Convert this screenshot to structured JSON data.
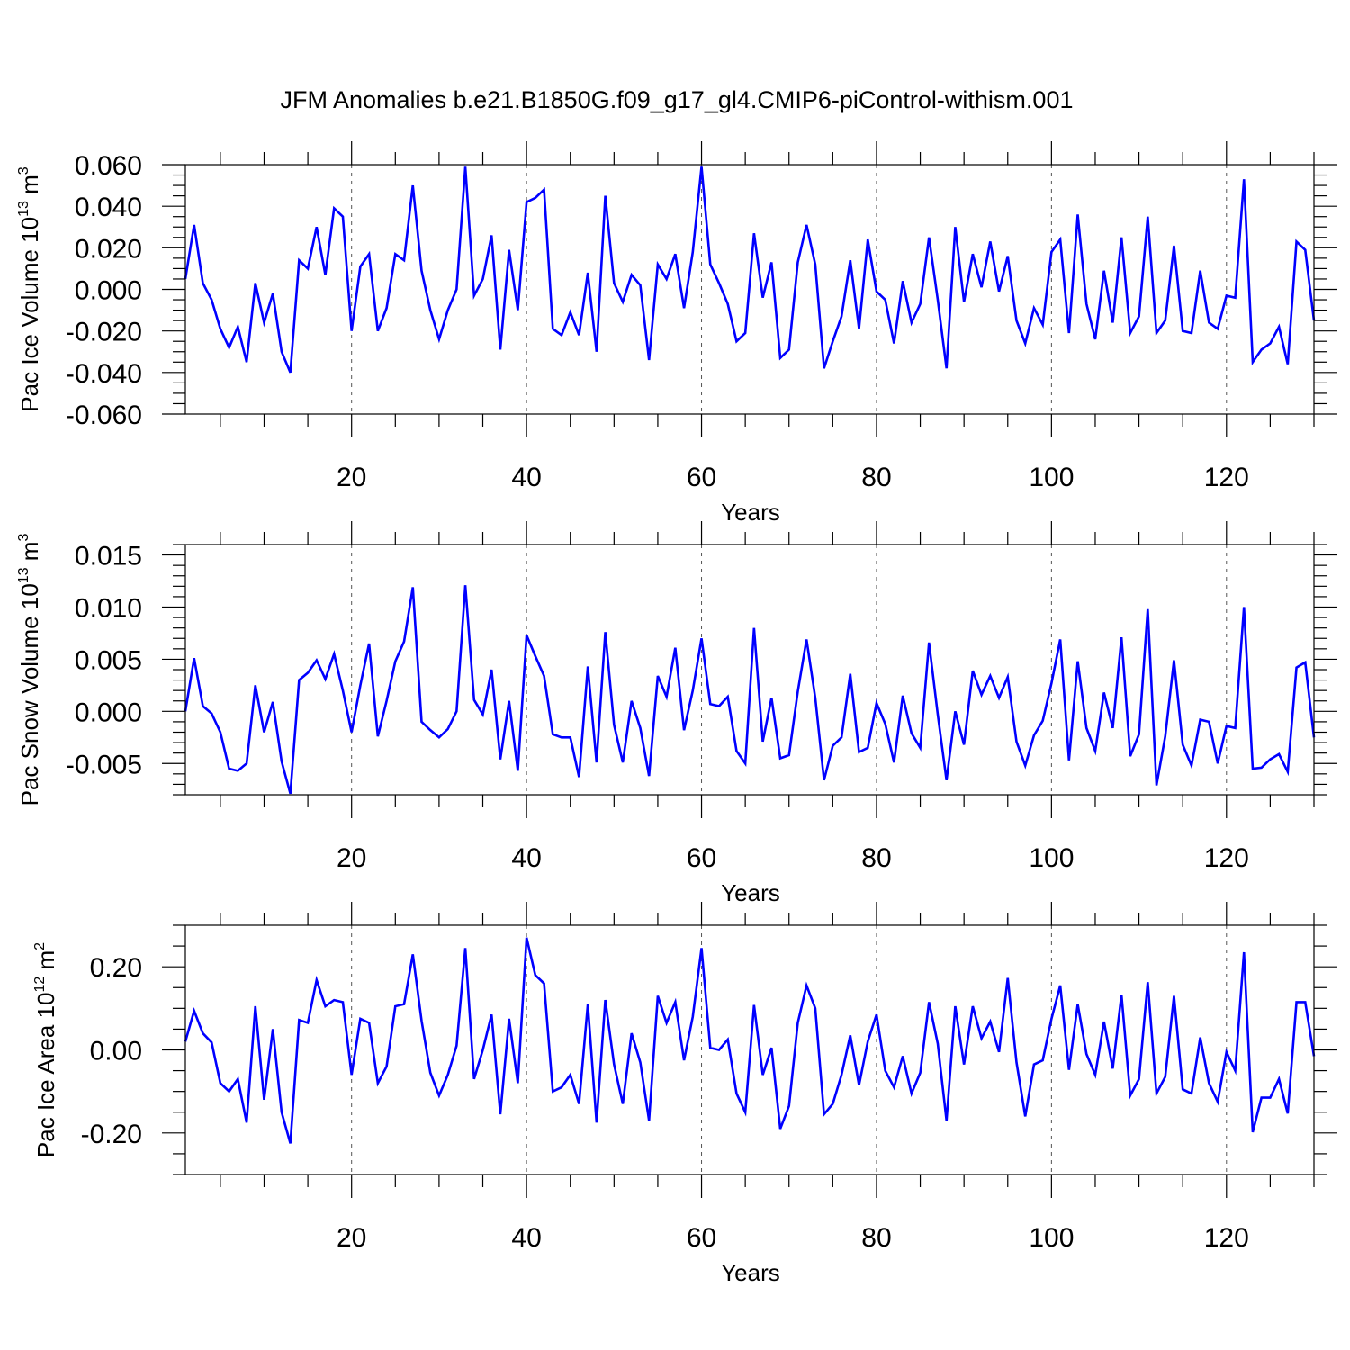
{
  "title": "JFM Anomalies b.e21.B1850G.f09_g17_gl4.CMIP6-piControl-withism.001",
  "colors": {
    "series": "#0000ff",
    "axes": "#000000",
    "grid": "#555555"
  },
  "chart_data": [
    {
      "type": "line",
      "ylabel_main": "Pac Ice Volume 10",
      "ylabel_exp": "13",
      "ylabel_unit": " m",
      "ylabel_unit_exp": "3",
      "xlabel": "Years",
      "xlim": [
        1,
        130
      ],
      "ylim": [
        -0.06,
        0.06
      ],
      "x_ticks": [
        20,
        40,
        60,
        80,
        100,
        120
      ],
      "x_tick_labels": [
        "20",
        "40",
        "60",
        "80",
        "100",
        "120"
      ],
      "y_ticks": [
        -0.06,
        -0.04,
        -0.02,
        0.0,
        0.02,
        0.04,
        0.06
      ],
      "y_tick_labels": [
        "-0.060",
        "-0.040",
        "-0.020",
        "0.000",
        "0.020",
        "0.040",
        "0.060"
      ],
      "grid": "vertical dashed at major x ticks",
      "series": [
        {
          "x_start": 1,
          "values": [
            0.005,
            0.031,
            0.003,
            -0.005,
            -0.019,
            -0.028,
            -0.018,
            -0.035,
            0.003,
            -0.016,
            -0.002,
            -0.03,
            -0.04,
            0.014,
            0.01,
            0.03,
            0.007,
            0.039,
            0.035,
            -0.02,
            0.011,
            0.017,
            -0.02,
            -0.009,
            0.017,
            0.014,
            0.05,
            0.009,
            -0.01,
            -0.024,
            -0.01,
            0.0,
            0.059,
            -0.003,
            0.005,
            0.026,
            -0.029,
            0.019,
            -0.01,
            0.042,
            0.044,
            0.048,
            -0.019,
            -0.022,
            -0.011,
            -0.022,
            0.008,
            -0.03,
            0.045,
            0.003,
            -0.006,
            0.007,
            0.002,
            -0.034,
            0.012,
            0.005,
            0.017,
            -0.009,
            0.018,
            0.059,
            0.012,
            0.003,
            -0.007,
            -0.025,
            -0.021,
            0.027,
            -0.004,
            0.013,
            -0.033,
            -0.029,
            0.013,
            0.031,
            0.012,
            -0.038,
            -0.025,
            -0.013,
            0.014,
            -0.019,
            0.024,
            -0.001,
            -0.005,
            -0.026,
            0.004,
            -0.016,
            -0.007,
            0.025,
            -0.005,
            -0.038,
            0.03,
            -0.006,
            0.017,
            0.001,
            0.023,
            -0.001,
            0.016,
            -0.015,
            -0.026,
            -0.009,
            -0.017,
            0.018,
            0.024,
            -0.021,
            0.036,
            -0.007,
            -0.024,
            0.009,
            -0.016,
            0.025,
            -0.021,
            -0.013,
            0.035,
            -0.021,
            -0.015,
            0.021,
            -0.02,
            -0.021,
            0.009,
            -0.016,
            -0.019,
            -0.003,
            -0.004,
            0.053,
            -0.035,
            -0.029,
            -0.026,
            -0.018,
            -0.036,
            0.023,
            0.019,
            -0.015
          ]
        }
      ]
    },
    {
      "type": "line",
      "ylabel_main": "Pac Snow Volume 10",
      "ylabel_exp": "13",
      "ylabel_unit": " m",
      "ylabel_unit_exp": "3",
      "xlabel": "Years",
      "xlim": [
        1,
        130
      ],
      "ylim": [
        -0.008,
        0.016
      ],
      "x_ticks": [
        20,
        40,
        60,
        80,
        100,
        120
      ],
      "x_tick_labels": [
        "20",
        "40",
        "60",
        "80",
        "100",
        "120"
      ],
      "y_ticks": [
        -0.005,
        0.0,
        0.005,
        0.01,
        0.015
      ],
      "y_tick_labels": [
        "-0.005",
        "0.000",
        "0.005",
        "0.010",
        "0.015"
      ],
      "grid": "vertical dashed at major x ticks",
      "series": [
        {
          "x_start": 1,
          "values": [
            0.0,
            0.0051,
            0.0005,
            -0.0002,
            -0.002,
            -0.0055,
            -0.0057,
            -0.005,
            0.0025,
            -0.002,
            0.0009,
            -0.0048,
            -0.0079,
            0.003,
            0.0037,
            0.0049,
            0.0031,
            0.0055,
            0.002,
            -0.002,
            0.0025,
            0.0065,
            -0.0024,
            0.001,
            0.0048,
            0.0067,
            0.0119,
            -0.001,
            -0.0018,
            -0.0025,
            -0.0017,
            0.0,
            0.0121,
            0.0011,
            -0.0003,
            0.004,
            -0.0046,
            0.001,
            -0.0057,
            0.0073,
            0.0053,
            0.0034,
            -0.0022,
            -0.0025,
            -0.0025,
            -0.0063,
            0.0043,
            -0.0049,
            0.0076,
            -0.0013,
            -0.0049,
            0.001,
            -0.0016,
            -0.0062,
            0.0034,
            0.0014,
            0.0061,
            -0.0018,
            0.002,
            0.007,
            0.0007,
            0.0005,
            0.0014,
            -0.0038,
            -0.005,
            0.008,
            -0.0029,
            0.0013,
            -0.0045,
            -0.0042,
            0.0019,
            0.0069,
            0.0013,
            -0.0066,
            -0.0033,
            -0.0025,
            0.0036,
            -0.0039,
            -0.0035,
            0.0008,
            -0.0012,
            -0.0049,
            0.0015,
            -0.0021,
            -0.0035,
            0.0066,
            -0.0003,
            -0.0066,
            0.0,
            -0.0032,
            0.0039,
            0.0016,
            0.0034,
            0.0013,
            0.0033,
            -0.0029,
            -0.0052,
            -0.0023,
            -0.0009,
            0.0027,
            0.0069,
            -0.0047,
            0.0048,
            -0.0016,
            -0.0038,
            0.0018,
            -0.0016,
            0.0071,
            -0.0043,
            -0.0022,
            0.0098,
            -0.0071,
            -0.0024,
            0.0049,
            -0.0032,
            -0.0052,
            -0.0008,
            -0.001,
            -0.005,
            -0.0014,
            -0.0016,
            0.01,
            -0.0055,
            -0.0054,
            -0.0046,
            -0.0041,
            -0.0058,
            0.0042,
            0.0047,
            -0.0025
          ]
        }
      ]
    },
    {
      "type": "line",
      "ylabel_main": "Pac Ice Area 10",
      "ylabel_exp": "12",
      "ylabel_unit": " m",
      "ylabel_unit_exp": "2",
      "xlabel": "Years",
      "xlim": [
        1,
        130
      ],
      "ylim": [
        -0.3,
        0.3
      ],
      "x_ticks": [
        20,
        40,
        60,
        80,
        100,
        120
      ],
      "x_tick_labels": [
        "20",
        "40",
        "60",
        "80",
        "100",
        "120"
      ],
      "y_ticks": [
        -0.2,
        0.0,
        0.2
      ],
      "y_tick_labels": [
        "-0.20",
        "0.00",
        "0.20"
      ],
      "grid": "vertical dashed at major x ticks",
      "series": [
        {
          "x_start": 1,
          "values": [
            0.02,
            0.094,
            0.04,
            0.018,
            -0.08,
            -0.1,
            -0.07,
            -0.175,
            0.105,
            -0.12,
            0.05,
            -0.15,
            -0.225,
            0.072,
            0.065,
            0.168,
            0.105,
            0.12,
            0.115,
            -0.06,
            0.075,
            0.065,
            -0.08,
            -0.04,
            0.105,
            0.11,
            0.23,
            0.07,
            -0.055,
            -0.11,
            -0.06,
            0.01,
            0.245,
            -0.07,
            0.0,
            0.085,
            -0.155,
            0.075,
            -0.08,
            0.27,
            0.18,
            0.16,
            -0.1,
            -0.09,
            -0.06,
            -0.13,
            0.11,
            -0.175,
            0.12,
            -0.035,
            -0.13,
            0.04,
            -0.03,
            -0.17,
            0.13,
            0.065,
            0.115,
            -0.025,
            0.08,
            0.245,
            0.005,
            0.0,
            0.025,
            -0.105,
            -0.15,
            0.108,
            -0.06,
            0.005,
            -0.19,
            -0.135,
            0.065,
            0.155,
            0.1,
            -0.155,
            -0.13,
            -0.06,
            0.035,
            -0.085,
            0.02,
            0.085,
            -0.05,
            -0.09,
            -0.015,
            -0.105,
            -0.055,
            0.115,
            0.015,
            -0.17,
            0.105,
            -0.035,
            0.105,
            0.028,
            0.068,
            -0.005,
            0.173,
            -0.03,
            -0.16,
            -0.035,
            -0.025,
            0.075,
            0.155,
            -0.048,
            0.11,
            -0.01,
            -0.06,
            0.068,
            -0.045,
            0.133,
            -0.11,
            -0.07,
            0.163,
            -0.105,
            -0.065,
            0.13,
            -0.095,
            -0.105,
            0.03,
            -0.08,
            -0.125,
            -0.005,
            -0.05,
            0.235,
            -0.198,
            -0.115,
            -0.115,
            -0.07,
            -0.153,
            0.115,
            0.115,
            -0.015
          ]
        }
      ]
    }
  ]
}
